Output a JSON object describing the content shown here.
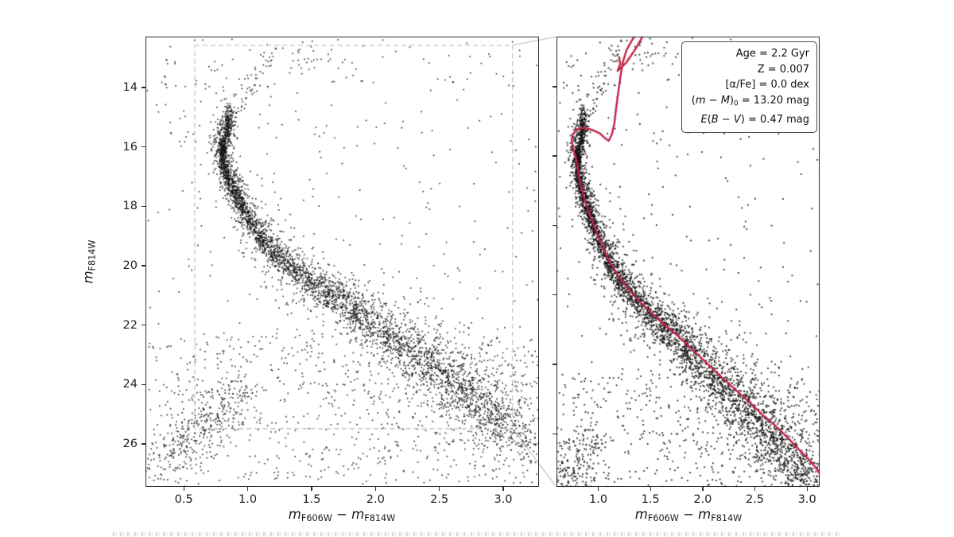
{
  "figure": {
    "background": "#ffffff",
    "axis_color": "#2e2e2e",
    "point_color": "#111111",
    "isochrone_color": "#c32347",
    "inset_box_color": "#b8b8b8"
  },
  "labels": {
    "x_axis_segments": [
      {
        "t": "m",
        "s": "i"
      },
      {
        "t": "F606W",
        "s": "sub"
      },
      {
        "t": " − ",
        "s": "n"
      },
      {
        "t": "m",
        "s": "i"
      },
      {
        "t": "F814W",
        "s": "sub"
      }
    ],
    "y_axis_segments": [
      {
        "t": "m",
        "s": "i"
      },
      {
        "t": "F814W",
        "s": "sub"
      }
    ]
  },
  "legend": {
    "lines": [
      [
        {
          "t": "Age = 2.2 Gyr",
          "s": "n"
        }
      ],
      [
        {
          "t": "Z = 0.007",
          "s": "n"
        }
      ],
      [
        {
          "t": "[α/Fe] = 0.0 dex",
          "s": "n"
        }
      ],
      [
        {
          "t": "(",
          "s": "n"
        },
        {
          "t": "m",
          "s": "i"
        },
        {
          "t": " − ",
          "s": "n"
        },
        {
          "t": "M",
          "s": "i"
        },
        {
          "t": ")",
          "s": "n"
        },
        {
          "t": "0",
          "s": "sub"
        },
        {
          "t": " = 13.20 mag",
          "s": "n"
        }
      ],
      [
        {
          "t": "E",
          "s": "i"
        },
        {
          "t": "(",
          "s": "n"
        },
        {
          "t": "B",
          "s": "i"
        },
        {
          "t": " − ",
          "s": "n"
        },
        {
          "t": "V",
          "s": "i"
        },
        {
          "t": ")",
          "s": "n"
        },
        {
          "t": " = 0.47 mag",
          "s": "n"
        }
      ]
    ]
  },
  "chart_data": {
    "type": "scatter",
    "title": "",
    "xlabel": "mF606W − mF814W",
    "ylabel": "mF814W",
    "seed": 20231104,
    "fit_parameters": {
      "age_gyr": 2.2,
      "Z": 0.007,
      "alpha_fe_dex": 0.0,
      "distance_modulus_mag": 13.2,
      "reddening_E_B_V_mag": 0.47
    },
    "panels": [
      {
        "id": "left",
        "xlim": [
          0.2,
          3.28
        ],
        "ylim": [
          12.28,
          27.45
        ],
        "xticks": [
          0.5,
          1.0,
          1.5,
          2.0,
          2.5,
          3.0
        ],
        "xtick_labels": [
          "0.5",
          "1.0",
          "1.5",
          "2.0",
          "2.5",
          "3.0"
        ],
        "yticks": [
          14,
          16,
          18,
          20,
          22,
          24,
          26
        ],
        "ytick_labels": [
          "14",
          "16",
          "18",
          "20",
          "22",
          "24",
          "26"
        ],
        "show_ytick_labels": true,
        "has_isochrone": false,
        "inset_box": {
          "x0": 0.586,
          "x1": 3.073,
          "y_top": 12.575,
          "y_bottom": 25.49
        }
      },
      {
        "id": "right",
        "xlim": [
          0.6,
          3.12
        ],
        "ylim": [
          12.56,
          25.53
        ],
        "xticks": [
          1.0,
          1.5,
          2.0,
          2.5,
          3.0
        ],
        "xtick_labels": [
          "1.0",
          "1.5",
          "2.0",
          "2.5",
          "3.0"
        ],
        "yticks": [
          14,
          16,
          18,
          20,
          22,
          24
        ],
        "ytick_labels": [],
        "show_ytick_labels": false,
        "has_isochrone": true
      }
    ],
    "cluster_ridge": [
      [
        0.86,
        14.95
      ],
      [
        0.845,
        15.25
      ],
      [
        0.82,
        15.6
      ],
      [
        0.8,
        15.95
      ],
      [
        0.795,
        16.2
      ],
      [
        0.81,
        16.55
      ],
      [
        0.835,
        16.9
      ],
      [
        0.87,
        17.3
      ],
      [
        0.915,
        17.7
      ],
      [
        0.965,
        18.1
      ],
      [
        1.01,
        18.45
      ],
      [
        1.06,
        18.8
      ],
      [
        1.12,
        19.15
      ],
      [
        1.19,
        19.5
      ],
      [
        1.28,
        19.85
      ],
      [
        1.38,
        20.2
      ],
      [
        1.5,
        20.55
      ],
      [
        1.63,
        20.95
      ],
      [
        1.77,
        21.35
      ],
      [
        1.91,
        21.75
      ],
      [
        2.05,
        22.15
      ],
      [
        2.19,
        22.55
      ],
      [
        2.32,
        22.95
      ],
      [
        2.45,
        23.4
      ],
      [
        2.57,
        23.85
      ],
      [
        2.69,
        24.25
      ],
      [
        2.81,
        24.7
      ],
      [
        2.92,
        25.05
      ],
      [
        3.02,
        25.4
      ],
      [
        3.11,
        25.75
      ],
      [
        3.18,
        26.1
      ]
    ],
    "sigma_profile": [
      [
        14,
        0.012
      ],
      [
        17,
        0.016
      ],
      [
        19,
        0.024
      ],
      [
        21,
        0.05
      ],
      [
        23,
        0.09
      ],
      [
        25,
        0.13
      ],
      [
        27,
        0.17
      ]
    ],
    "scatter_components": [
      {
        "name": "cluster-sequence-core",
        "type": "ridge",
        "n": 2600,
        "sigma_scale": 1.0,
        "dy": 0
      },
      {
        "name": "cluster-sequence-broad",
        "type": "ridge",
        "n": 1250,
        "sigma_scale": 3.4,
        "dy": 0
      },
      {
        "name": "binary-sequence",
        "type": "ridge",
        "n": 430,
        "sigma_scale": 1.8,
        "dy": -0.45
      },
      {
        "name": "red-giant-branch",
        "type": "line",
        "n": 60,
        "p1": [
          0.89,
          14.85
        ],
        "p2": [
          1.23,
          12.55
        ],
        "sx": 0.045,
        "sy": 0.12
      },
      {
        "name": "upper-ms-clump",
        "type": "blob",
        "n": 70,
        "cx": 0.85,
        "cy": 15.45,
        "sx": 0.02,
        "sy": 0.42
      },
      {
        "name": "top-mid-group",
        "type": "blob",
        "n": 26,
        "cx": 1.44,
        "cy": 13.05,
        "sx": 0.07,
        "sy": 0.3
      },
      {
        "name": "top-left-sparse",
        "type": "box",
        "n": 42,
        "x0": 0.27,
        "x1": 0.85,
        "y0": 12.85,
        "y1": 15.9
      },
      {
        "name": "field-uniform",
        "type": "box",
        "n": 430,
        "x0": 0.21,
        "x1": 3.27,
        "y0": 12.35,
        "y1": 27.35
      },
      {
        "name": "faint-field",
        "type": "box",
        "n": 520,
        "x0": 0.21,
        "x1": 3.27,
        "y0": 22.3,
        "y1": 27.35
      },
      {
        "name": "sw-field-blob",
        "type": "line",
        "n": 380,
        "p1": [
          0.33,
          26.7
        ],
        "p2": [
          0.98,
          23.95
        ],
        "sx": 0.09,
        "sy": 0.5
      }
    ],
    "isochrone_main": [
      [
        3.16,
        25.35
      ],
      [
        3.1,
        25.05
      ],
      [
        3.02,
        24.75
      ],
      [
        2.92,
        24.45
      ],
      [
        2.81,
        24.1
      ],
      [
        2.69,
        23.75
      ],
      [
        2.57,
        23.45
      ],
      [
        2.45,
        23.1
      ],
      [
        2.32,
        22.75
      ],
      [
        2.19,
        22.4
      ],
      [
        2.05,
        22.0
      ],
      [
        1.91,
        21.6
      ],
      [
        1.77,
        21.2
      ],
      [
        1.63,
        20.85
      ],
      [
        1.5,
        20.5
      ],
      [
        1.38,
        20.15
      ],
      [
        1.28,
        19.8
      ],
      [
        1.19,
        19.45
      ],
      [
        1.12,
        19.1
      ],
      [
        1.06,
        18.75
      ],
      [
        1.01,
        18.4
      ],
      [
        0.965,
        18.05
      ],
      [
        0.915,
        17.65
      ],
      [
        0.87,
        17.25
      ],
      [
        0.835,
        16.85
      ],
      [
        0.81,
        16.5
      ],
      [
        0.795,
        16.15
      ],
      [
        0.77,
        15.9
      ],
      [
        0.745,
        15.55
      ],
      [
        0.755,
        15.38
      ],
      [
        0.79,
        15.25
      ],
      [
        0.84,
        15.19
      ],
      [
        0.9,
        15.21
      ],
      [
        0.96,
        15.27
      ],
      [
        1.02,
        15.36
      ],
      [
        1.07,
        15.5
      ],
      [
        1.1,
        15.56
      ],
      [
        1.13,
        15.38
      ],
      [
        1.155,
        15.05
      ],
      [
        1.17,
        14.65
      ],
      [
        1.19,
        14.2
      ],
      [
        1.21,
        13.75
      ],
      [
        1.235,
        13.3
      ],
      [
        1.27,
        12.95
      ],
      [
        1.32,
        12.68
      ],
      [
        1.37,
        12.45
      ]
    ],
    "isochrone_agb_loop": [
      [
        1.445,
        12.45
      ],
      [
        1.36,
        12.9
      ],
      [
        1.27,
        13.3
      ],
      [
        1.185,
        13.55
      ],
      [
        1.21,
        13.35
      ],
      [
        1.2,
        13.15
      ]
    ]
  }
}
